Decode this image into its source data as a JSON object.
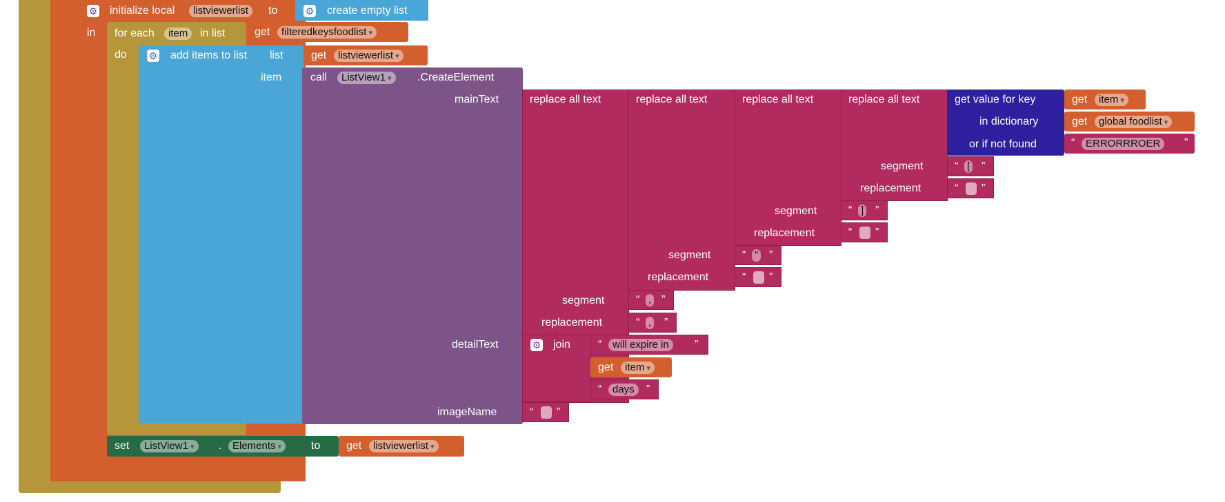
{
  "colors": {
    "control": "#b5963a",
    "variable": "#d45f2e",
    "procedure_lists": "#4aa6d6",
    "component_call": "#7d5487",
    "text": "#b22b5e",
    "dictionary": "#2d1f9e",
    "set_block": "#276b45"
  },
  "init_local": {
    "label": "initialize local",
    "var_name": "listviewerlist",
    "to_label": "to",
    "value_label": "create empty list",
    "in_label": "in"
  },
  "for_each": {
    "label": "for each",
    "var_name": "item",
    "in_list_label": "in list",
    "get_label": "get",
    "get_var": "filteredkeysfoodlist",
    "do_label": "do"
  },
  "add_items": {
    "label": "add items to list",
    "list_label": "list",
    "get_label": "get",
    "get_var": "listviewerlist",
    "item_label": "item"
  },
  "create_element": {
    "call_label": "call",
    "component": "ListView1",
    "method": ".CreateElement",
    "main_text_label": "mainText",
    "detail_text_label": "detailText",
    "image_name_label": "imageName"
  },
  "replace": {
    "label": "replace all text",
    "segment_label": "segment",
    "replacement_label": "replacement",
    "segments": [
      "[",
      "]",
      "\"",
      ","
    ],
    "replacements": [
      "",
      "",
      "",
      ","
    ]
  },
  "dict_lookup": {
    "label": "get value for key",
    "get_label": "get",
    "key_var": "item",
    "in_dictionary_label": "in dictionary",
    "dict_var": "global foodlist",
    "not_found_label": "or if not found",
    "not_found_text": "ERRORRROER"
  },
  "join": {
    "label": "join",
    "text1": "will expire in",
    "get_label": "get",
    "get_var": "item",
    "text3": "days"
  },
  "set_block": {
    "set_label": "set",
    "component": "ListView1",
    "dot": ".",
    "property": "Elements",
    "to_label": "to",
    "get_label": "get",
    "get_var": "listviewerlist"
  },
  "quote_open": "“",
  "quote_close": "”",
  "icons": [
    "mutator-gear-icon",
    "dropdown-arrow-icon"
  ]
}
